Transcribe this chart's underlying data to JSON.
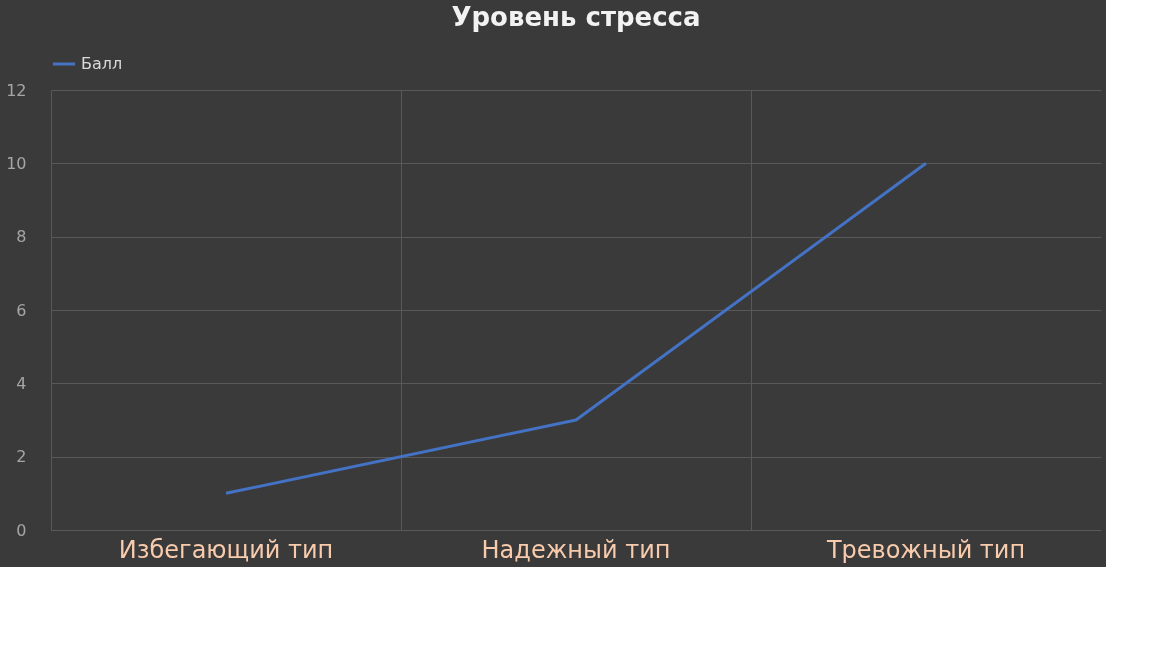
{
  "chart_data": {
    "type": "line",
    "title": "Уровень стресса",
    "categories": [
      "Избегающий тип",
      "Надежный тип",
      "Тревожный тип"
    ],
    "series": [
      {
        "name": "Балл",
        "color": "#4472c4",
        "values": [
          1,
          3,
          10
        ]
      }
    ],
    "ylim": [
      0,
      12
    ],
    "yticks": [
      0,
      2,
      4,
      6,
      8,
      10,
      12
    ],
    "grid": true,
    "legend": "top",
    "marker": "none",
    "line_style": "solid"
  }
}
